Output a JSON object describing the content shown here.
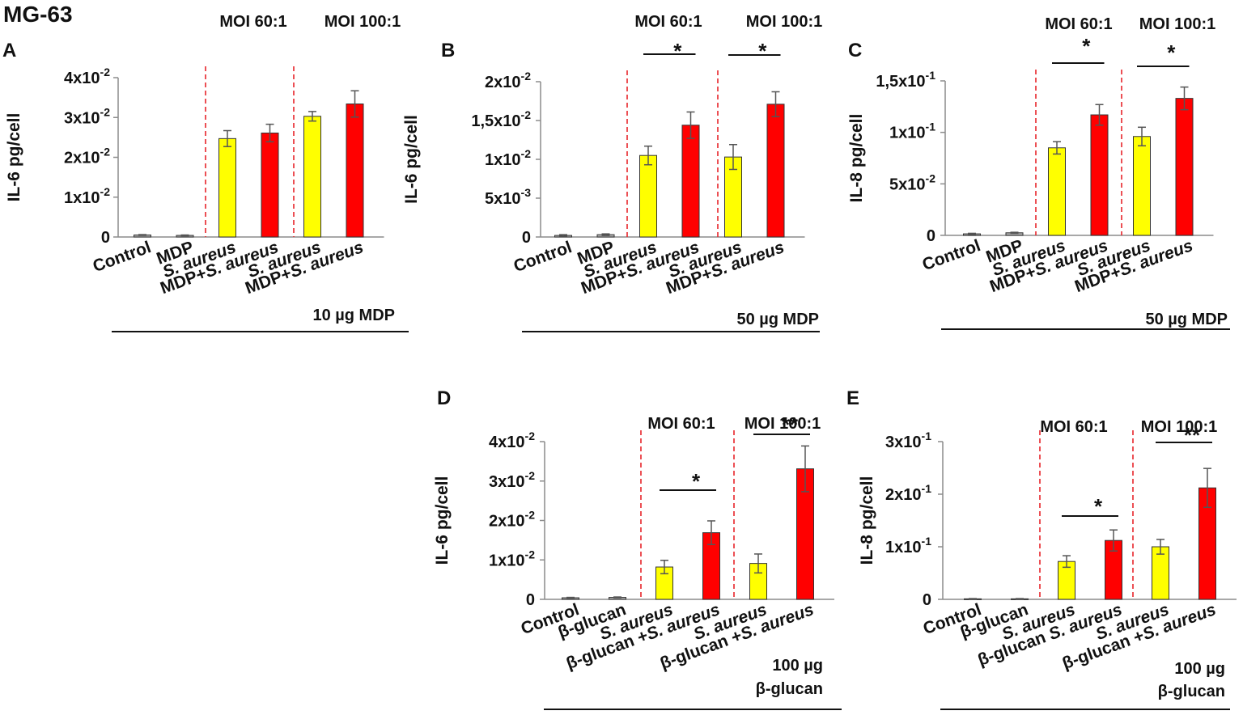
{
  "title": "MG-63",
  "colors": {
    "control": "#b0b0b0",
    "s_aureus": "#ffff00",
    "combined": "#ff0000",
    "separator": "#e8242a",
    "axis": "#8c8c8c",
    "text": "#111111"
  },
  "chart_data": [
    {
      "panel": "A",
      "type": "bar",
      "ylabel": "IL-6 pg/cell",
      "ylim": [
        0,
        0.04
      ],
      "yticks": [
        {
          "value": 0,
          "label": "0"
        },
        {
          "value": 0.01,
          "label": "1x10",
          "exp": "-2"
        },
        {
          "value": 0.02,
          "label": "2x10",
          "exp": "-2"
        },
        {
          "value": 0.03,
          "label": "3x10",
          "exp": "-2"
        },
        {
          "value": 0.04,
          "label": "4x10",
          "exp": "-2"
        }
      ],
      "categories": [
        "Control",
        "MDP",
        "S. aureus",
        "MDP+S. aureus",
        "S. aureus",
        "MDP+S. aureus"
      ],
      "categories_italic": [
        "",
        "",
        "S. aureus",
        "S. aureus",
        "S. aureus",
        "S. aureus"
      ],
      "values": [
        0.0005,
        0.0004,
        0.0247,
        0.0261,
        0.0303,
        0.0334
      ],
      "errors": [
        0.0001,
        0.0001,
        0.002,
        0.0022,
        0.0012,
        0.0033
      ],
      "bar_colors": [
        "control",
        "control",
        "s_aureus",
        "combined",
        "s_aureus",
        "combined"
      ],
      "moi_labels": [
        "MOI 60:1",
        "MOI 100:1"
      ],
      "significance": [],
      "footer": [
        "10 µg MDP"
      ]
    },
    {
      "panel": "B",
      "type": "bar",
      "ylabel": "IL-6 pg/cell",
      "ylim": [
        0,
        0.02
      ],
      "yticks": [
        {
          "value": 0,
          "label": "0"
        },
        {
          "value": 0.005,
          "label": "5x10",
          "exp": "-3"
        },
        {
          "value": 0.01,
          "label": "1x10",
          "exp": "-2"
        },
        {
          "value": 0.015,
          "label": "1,5x10",
          "exp": "-2"
        },
        {
          "value": 0.02,
          "label": "2x10",
          "exp": "-2"
        }
      ],
      "categories": [
        "Control",
        "MDP",
        "S. aureus",
        "MDP+S. aureus",
        "S. aureus",
        "MDP+S. aureus"
      ],
      "categories_italic": [
        "",
        "",
        "S. aureus",
        "S. aureus",
        "S. aureus",
        "S. aureus"
      ],
      "values": [
        0.0002,
        0.0003,
        0.0105,
        0.0144,
        0.0103,
        0.0171
      ],
      "errors": [
        0.0001,
        0.0001,
        0.0012,
        0.0017,
        0.0016,
        0.0016
      ],
      "bar_colors": [
        "control",
        "control",
        "s_aureus",
        "combined",
        "s_aureus",
        "combined"
      ],
      "moi_labels": [
        "MOI 60:1",
        "MOI 100:1"
      ],
      "significance": [
        {
          "from": 2,
          "to": 3,
          "label": "*"
        },
        {
          "from": 4,
          "to": 5,
          "label": "*"
        }
      ],
      "footer": [
        "50 µg MDP"
      ]
    },
    {
      "panel": "C",
      "type": "bar",
      "ylabel": "IL-8 pg/cell",
      "ylim": [
        0,
        0.15
      ],
      "yticks": [
        {
          "value": 0,
          "label": "0"
        },
        {
          "value": 0.05,
          "label": "5x10",
          "exp": "-2"
        },
        {
          "value": 0.1,
          "label": "1x10",
          "exp": "-1"
        },
        {
          "value": 0.15,
          "label": "1,5x10",
          "exp": "-1"
        }
      ],
      "categories": [
        "Control",
        "MDP",
        "S. aureus",
        "MDP+S. aureus",
        "S. aureus",
        "MDP+S. aureus"
      ],
      "categories_italic": [
        "",
        "",
        "S. aureus",
        "S. aureus",
        "S. aureus",
        "S. aureus"
      ],
      "values": [
        0.0015,
        0.0025,
        0.085,
        0.117,
        0.096,
        0.133
      ],
      "errors": [
        0.0005,
        0.0005,
        0.006,
        0.01,
        0.009,
        0.011
      ],
      "bar_colors": [
        "control",
        "control",
        "s_aureus",
        "combined",
        "s_aureus",
        "combined"
      ],
      "moi_labels": [
        "MOI 60:1",
        "MOI 100:1"
      ],
      "significance": [
        {
          "from": 2,
          "to": 3,
          "label": "*"
        },
        {
          "from": 4,
          "to": 5,
          "label": "*"
        }
      ],
      "footer": [
        "50 µg MDP"
      ]
    },
    {
      "panel": "D",
      "type": "bar",
      "ylabel": "IL-6 pg/cell",
      "ylim": [
        0,
        0.04
      ],
      "yticks": [
        {
          "value": 0,
          "label": "0"
        },
        {
          "value": 0.01,
          "label": "1x10",
          "exp": "-2"
        },
        {
          "value": 0.02,
          "label": "2x10",
          "exp": "-2"
        },
        {
          "value": 0.03,
          "label": "3x10",
          "exp": "-2"
        },
        {
          "value": 0.04,
          "label": "4x10",
          "exp": "-2"
        }
      ],
      "categories": [
        "Control",
        "β-glucan",
        "S. aureus",
        "β-glucan +S. aureus",
        "S. aureus",
        "β-glucan +S. aureus"
      ],
      "categories_italic": [
        "",
        "",
        "S. aureus",
        "S. aureus",
        "S. aureus",
        "S. aureus"
      ],
      "values": [
        0.0004,
        0.0005,
        0.0082,
        0.0169,
        0.0091,
        0.0331
      ],
      "errors": [
        0.0001,
        0.0001,
        0.0017,
        0.003,
        0.0024,
        0.0058
      ],
      "bar_colors": [
        "control",
        "control",
        "s_aureus",
        "combined",
        "s_aureus",
        "combined"
      ],
      "moi_labels": [
        "MOI 60:1",
        "MOI 100:1"
      ],
      "significance": [
        {
          "from": 2,
          "to": 3,
          "label": "*"
        },
        {
          "from": 4,
          "to": 5,
          "label": "**"
        }
      ],
      "footer": [
        "100 µg",
        "β-glucan"
      ]
    },
    {
      "panel": "E",
      "type": "bar",
      "ylabel": "IL-8 pg/cell",
      "ylim": [
        0,
        0.3
      ],
      "yticks": [
        {
          "value": 0,
          "label": "0"
        },
        {
          "value": 0.1,
          "label": "1x10",
          "exp": "-1"
        },
        {
          "value": 0.2,
          "label": "2x10",
          "exp": "-1"
        },
        {
          "value": 0.3,
          "label": "3x10",
          "exp": "-1"
        }
      ],
      "categories": [
        "Control",
        "β-glucan",
        "S. aureus",
        "β-glucan S. aureus",
        "S. aureus",
        "β-glucan +S. aureus"
      ],
      "categories_italic": [
        "",
        "",
        "S. aureus",
        "S. aureus",
        "S. aureus",
        "S. aureus"
      ],
      "values": [
        0.001,
        0.001,
        0.072,
        0.112,
        0.1,
        0.212
      ],
      "errors": [
        0.0005,
        0.0005,
        0.011,
        0.02,
        0.014,
        0.037
      ],
      "bar_colors": [
        "control",
        "control",
        "s_aureus",
        "combined",
        "s_aureus",
        "combined"
      ],
      "moi_labels": [
        "MOI 60:1",
        "MOI 100:1"
      ],
      "significance": [
        {
          "from": 2,
          "to": 3,
          "label": "*"
        },
        {
          "from": 4,
          "to": 5,
          "label": "**"
        }
      ],
      "footer": [
        "100 µg",
        "β-glucan"
      ]
    }
  ]
}
